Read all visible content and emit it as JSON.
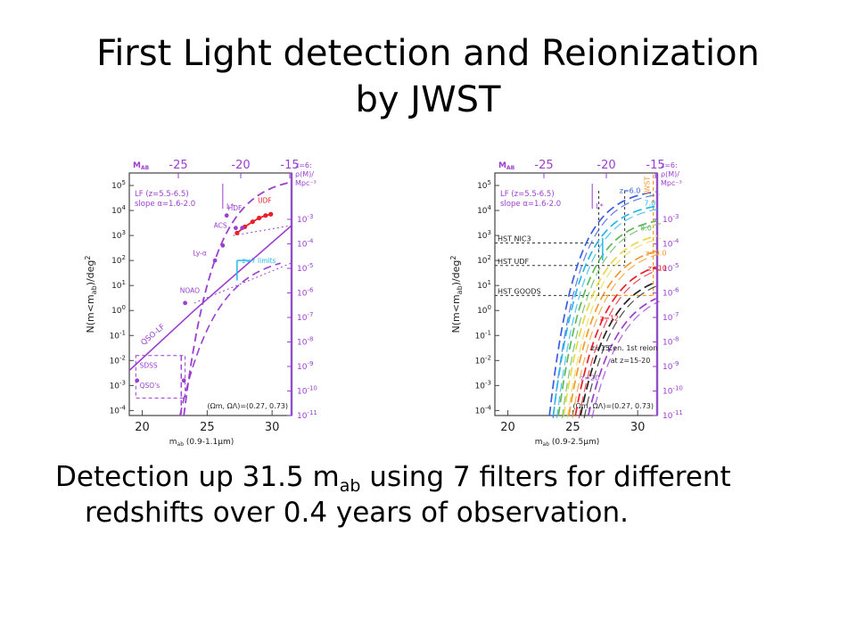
{
  "slide": {
    "title_line1": "First Light detection and Reionization",
    "title_line2": "by JWST",
    "caption": {
      "pre": "Detection up 31.5 m",
      "sub": "ab",
      "post": " using 7 filters for different",
      "line2": "redshifts over 0.4 years of observation."
    }
  },
  "colors": {
    "purple": "#9b3fd0",
    "axis": "#8f4fc7",
    "red": "#e8202a",
    "cyan": "#27b8e8",
    "orange": "#f29a2e",
    "yellow": "#e8d84a",
    "green": "#5fb85a",
    "blue": "#3a5de0",
    "black": "#222222"
  },
  "chart_data": [
    {
      "type": "line",
      "panel": "left",
      "top_axis_label": "M",
      "top_axis_sub": "AB",
      "top_ticks": [
        "-25",
        "-20",
        "-15"
      ],
      "ylabel": "N(m<m",
      "ylabel_sub": "ab",
      "ylabel_post": ")/deg",
      "ylabel_sup": "2",
      "xlabel": "m",
      "xlabel_sub": "ab",
      "xlabel_post": " (0.9-1.1μm)",
      "x_ticks": [
        "20",
        "25",
        "30"
      ],
      "xlim": [
        19,
        31.5
      ],
      "y_exp": [
        "5",
        "4",
        "3",
        "2",
        "1",
        "0",
        "-1",
        "-2",
        "-3",
        "-4"
      ],
      "right_exp": [
        "-3",
        "-4",
        "-5",
        "-6",
        "-7",
        "-8",
        "-9",
        "-10",
        "-11"
      ],
      "right_header": [
        "z=6:",
        "ρ(M)/",
        "Mpc⁻³"
      ],
      "legend_lines": [
        "LF (z=5.5-6.5)",
        "slope α=1.6-2.0"
      ],
      "cosmo": "(Ωm, ΩΛ)=(0.27, 0.73)",
      "annotations": [
        "L*",
        "HDF",
        "ACS",
        "UDF",
        "Ly-α",
        "z=7 limits",
        "NOAO",
        "QSO-LF",
        "SDSS",
        "QSO's"
      ],
      "red_points_x": [
        27.3,
        27.9,
        28.5,
        29.0,
        29.5,
        29.9
      ],
      "red_points_logy": [
        3.1,
        3.35,
        3.55,
        3.7,
        3.8,
        3.85
      ]
    },
    {
      "type": "line",
      "panel": "right",
      "top_axis_label": "M",
      "top_axis_sub": "AB",
      "top_ticks": [
        "-25",
        "-20",
        "-15"
      ],
      "ylabel": "N(m<m",
      "ylabel_sub": "ab",
      "ylabel_post": ")/deg",
      "ylabel_sup": "2",
      "xlabel": "m",
      "xlabel_sub": "ab",
      "xlabel_post": " (0.9-2.5μm)",
      "x_ticks": [
        "20",
        "25",
        "30"
      ],
      "xlim": [
        19,
        31.5
      ],
      "y_exp": [
        "5",
        "4",
        "3",
        "2",
        "1",
        "0",
        "-1",
        "-2",
        "-3",
        "-4"
      ],
      "right_exp": [
        "-3",
        "-4",
        "-5",
        "-6",
        "-7",
        "-8",
        "-9",
        "-10",
        "-11"
      ],
      "right_header": [
        "z=6:",
        "ρ(M)/",
        "Mpc⁻³"
      ],
      "legend_lines": [
        "LF (z=5.5-6.5)",
        "slope α=1.6-2.0"
      ],
      "cosmo": "(Ωm, ΩΛ)=(0.27, 0.73)",
      "survey_labels": [
        "HST NIC3",
        "HST UDF",
        "HST GOODS"
      ],
      "annotations": [
        "JWST",
        "L*",
        "z=6.0",
        "7.0",
        "8.0",
        "z=9.0",
        "z=10",
        "z=12",
        "z=15",
        "Cen. 1st reion",
        "at z=15-20",
        "z=20"
      ],
      "series": [
        {
          "name": "z=6.0",
          "color": "#3a5de0",
          "x0": 23.2
        },
        {
          "name": "7.0",
          "color": "#27b8e8",
          "x0": 23.5
        },
        {
          "name": "8.0",
          "color": "#5fb85a",
          "x0": 23.9
        },
        {
          "name": "z=9.0",
          "color": "#e8d84a",
          "x0": 24.3
        },
        {
          "name": "z=10",
          "color": "#f29a2e",
          "x0": 24.7
        },
        {
          "name": "z=12",
          "color": "#e8202a",
          "x0": 25.2
        },
        {
          "name": "z=15",
          "color": "#222222",
          "x0": 25.6
        },
        {
          "name": "z=20",
          "color": "#9b3fd0",
          "x0": 26.2
        }
      ]
    }
  ]
}
